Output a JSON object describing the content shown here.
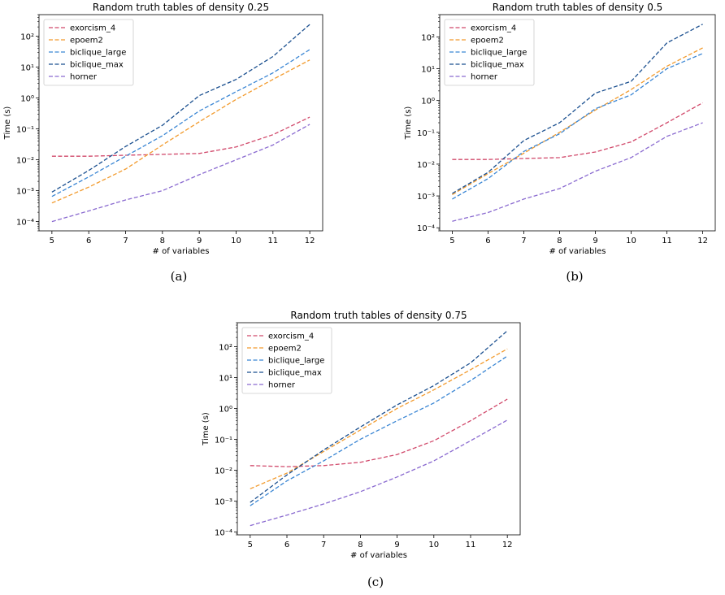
{
  "chart_data": [
    {
      "type": "line",
      "title": "Random truth tables of density 0.25",
      "xlabel": "# of variables",
      "ylabel": "Time (s)",
      "caption": "(a)",
      "yscale": "log",
      "ylim": [
        5e-05,
        500
      ],
      "xlim": [
        4.65,
        12.35
      ],
      "x": [
        5,
        6,
        7,
        8,
        9,
        10,
        11,
        12
      ],
      "xticks": [
        "5",
        "6",
        "7",
        "8",
        "9",
        "10",
        "11",
        "12"
      ],
      "legend_position": "upper-left",
      "series": [
        {
          "name": "exorcism_4",
          "color": "#d1496b",
          "values": [
            0.013,
            0.013,
            0.014,
            0.015,
            0.016,
            0.026,
            0.065,
            0.24
          ]
        },
        {
          "name": "epoem2",
          "color": "#f29b2e",
          "values": [
            0.0004,
            0.0013,
            0.005,
            0.03,
            0.17,
            0.9,
            4.0,
            17
          ]
        },
        {
          "name": "biclique_large",
          "color": "#3a86d4",
          "values": [
            0.00065,
            0.0028,
            0.013,
            0.06,
            0.38,
            1.6,
            6.5,
            37
          ]
        },
        {
          "name": "biclique_max",
          "color": "#1a4f8f",
          "values": [
            0.0009,
            0.0045,
            0.027,
            0.13,
            1.2,
            4.0,
            22,
            240
          ]
        },
        {
          "name": "horner",
          "color": "#8a6ad0",
          "values": [
            0.0001,
            0.00022,
            0.0005,
            0.001,
            0.0033,
            0.01,
            0.03,
            0.14
          ]
        }
      ]
    },
    {
      "type": "line",
      "title": "Random truth tables of density 0.5",
      "xlabel": "# of variables",
      "ylabel": "Time (s)",
      "caption": "(b)",
      "yscale": "log",
      "ylim": [
        8e-05,
        500
      ],
      "xlim": [
        4.65,
        12.35
      ],
      "x": [
        5,
        6,
        7,
        8,
        9,
        10,
        11,
        12
      ],
      "xticks": [
        "5",
        "6",
        "7",
        "8",
        "9",
        "10",
        "11",
        "12"
      ],
      "legend_position": "upper-left",
      "series": [
        {
          "name": "exorcism_4",
          "color": "#d1496b",
          "values": [
            0.014,
            0.014,
            0.015,
            0.016,
            0.024,
            0.05,
            0.2,
            0.85
          ]
        },
        {
          "name": "epoem2",
          "color": "#f29b2e",
          "values": [
            0.0011,
            0.005,
            0.022,
            0.1,
            0.5,
            2.2,
            12,
            45
          ]
        },
        {
          "name": "biclique_large",
          "color": "#3a86d4",
          "values": [
            0.0008,
            0.0035,
            0.025,
            0.09,
            0.55,
            1.5,
            10,
            30
          ]
        },
        {
          "name": "biclique_max",
          "color": "#1a4f8f",
          "values": [
            0.0012,
            0.0055,
            0.055,
            0.2,
            1.7,
            4.0,
            65,
            250
          ]
        },
        {
          "name": "horner",
          "color": "#8a6ad0",
          "values": [
            0.00016,
            0.0003,
            0.0008,
            0.0017,
            0.006,
            0.016,
            0.075,
            0.2
          ]
        }
      ]
    },
    {
      "type": "line",
      "title": "Random truth tables of density 0.75",
      "xlabel": "# of variables",
      "ylabel": "Time (s)",
      "caption": "(c)",
      "yscale": "log",
      "ylim": [
        8e-05,
        600
      ],
      "xlim": [
        4.65,
        12.35
      ],
      "x": [
        5,
        6,
        7,
        8,
        9,
        10,
        11,
        12
      ],
      "xticks": [
        "5",
        "6",
        "7",
        "8",
        "9",
        "10",
        "11",
        "12"
      ],
      "legend_position": "upper-left",
      "series": [
        {
          "name": "exorcism_4",
          "color": "#d1496b",
          "values": [
            0.014,
            0.013,
            0.014,
            0.018,
            0.032,
            0.09,
            0.4,
            2.0
          ]
        },
        {
          "name": "epoem2",
          "color": "#f29b2e",
          "values": [
            0.0025,
            0.008,
            0.04,
            0.2,
            1.0,
            4.0,
            18,
            85
          ]
        },
        {
          "name": "biclique_large",
          "color": "#3a86d4",
          "values": [
            0.0007,
            0.0045,
            0.02,
            0.1,
            0.4,
            1.5,
            8,
            50
          ]
        },
        {
          "name": "biclique_max",
          "color": "#1a4f8f",
          "values": [
            0.0009,
            0.007,
            0.045,
            0.25,
            1.3,
            5.5,
            30,
            330
          ]
        },
        {
          "name": "horner",
          "color": "#8a6ad0",
          "values": [
            0.00016,
            0.00035,
            0.0008,
            0.002,
            0.006,
            0.02,
            0.09,
            0.42
          ]
        }
      ]
    }
  ]
}
